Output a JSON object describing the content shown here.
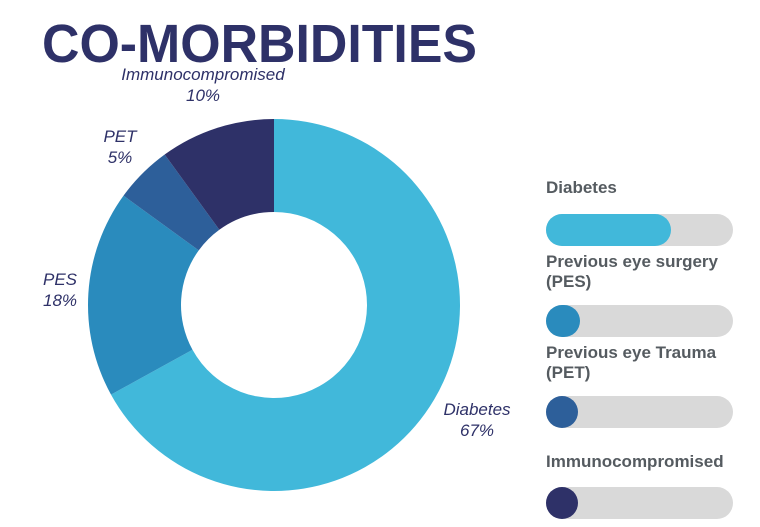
{
  "chart_data": {
    "type": "donut",
    "title": "CO-MORBIDITIES",
    "categories": [
      "Diabetes",
      "PES",
      "PET",
      "Immunocompromised"
    ],
    "values": [
      67,
      18,
      5,
      10
    ],
    "value_labels": [
      "67%",
      "18%",
      "5%",
      "10%"
    ],
    "colors": [
      "#41b8da",
      "#2a8bbd",
      "#2d5f9a",
      "#2e3168"
    ],
    "legend_labels": [
      "Diabetes",
      "Previous eye surgery (PES)",
      "Previous eye Trauma (PET)",
      "Immunocompromised"
    ]
  }
}
